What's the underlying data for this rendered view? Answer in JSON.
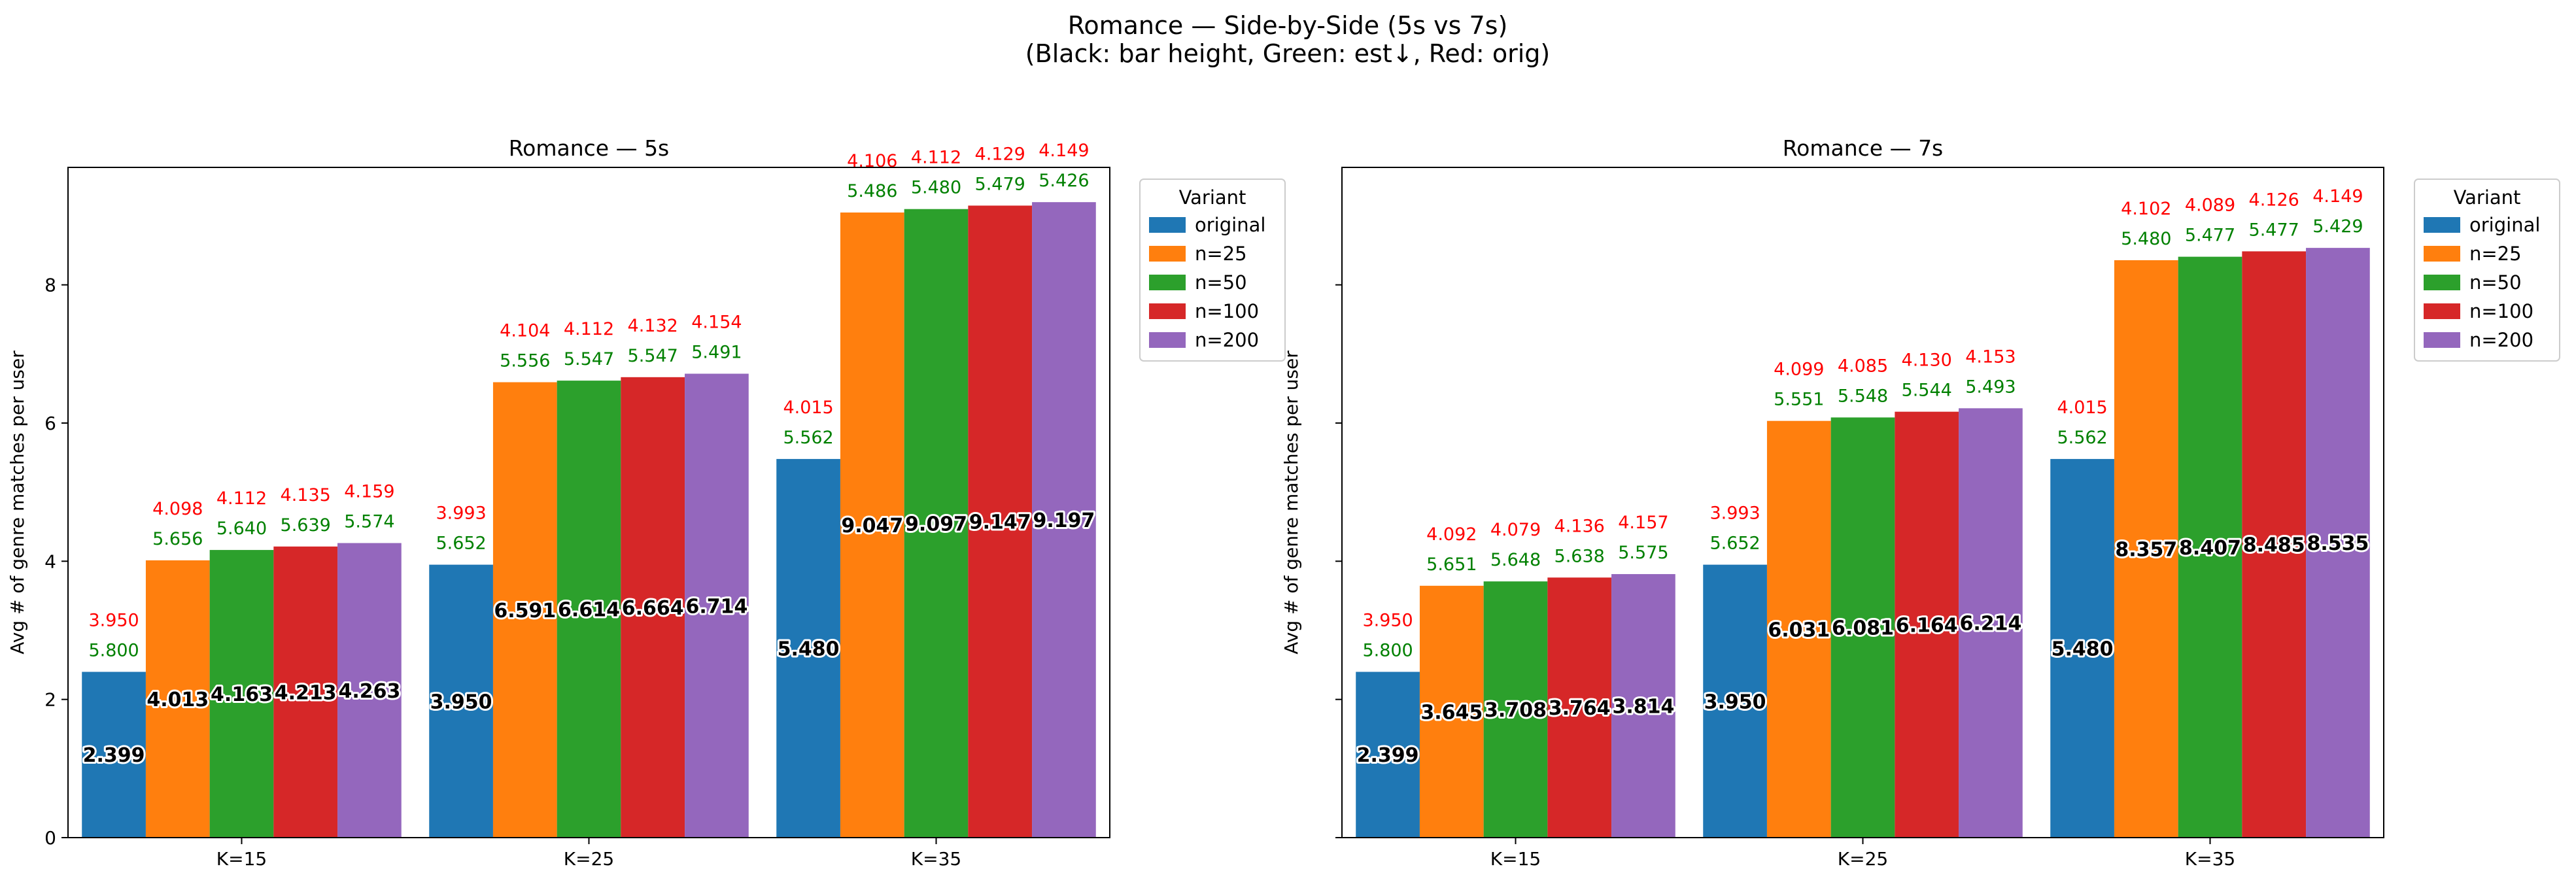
{
  "figure": {
    "title_line1": "Romance — Side-by-Side (5s vs 7s)",
    "title_line2": "(Black: bar height, Green: est↓, Red: orig)"
  },
  "chart_data": [
    {
      "type": "bar",
      "title": "Romance — 5s",
      "xlabel": "",
      "ylabel": "Avg # of genre matches per user",
      "ylim": [
        0,
        9.7
      ],
      "yticks": [
        0,
        2,
        4,
        6,
        8
      ],
      "categories": [
        "K=15",
        "K=25",
        "K=35"
      ],
      "legend": {
        "title": "Variant",
        "placement": "upper-right-outside"
      },
      "series": [
        {
          "name": "original",
          "color": "#1f77b4",
          "values": [
            2.399,
            3.95,
            5.48
          ],
          "green": [
            "5.800",
            "5.652",
            "5.562"
          ],
          "red": [
            "3.950",
            "3.993",
            "4.015"
          ]
        },
        {
          "name": "n=25",
          "color": "#ff7f0e",
          "values": [
            4.013,
            6.591,
            9.047
          ],
          "green": [
            "5.656",
            "5.556",
            "5.486"
          ],
          "red": [
            "4.098",
            "4.104",
            "4.106"
          ]
        },
        {
          "name": "n=50",
          "color": "#2ca02c",
          "values": [
            4.163,
            6.614,
            9.097
          ],
          "green": [
            "5.640",
            "5.547",
            "5.480"
          ],
          "red": [
            "4.112",
            "4.112",
            "4.112"
          ]
        },
        {
          "name": "n=100",
          "color": "#d62728",
          "values": [
            4.213,
            6.664,
            9.147
          ],
          "green": [
            "5.639",
            "5.547",
            "5.479"
          ],
          "red": [
            "4.135",
            "4.132",
            "4.129"
          ]
        },
        {
          "name": "n=200",
          "color": "#9467bd",
          "values": [
            4.263,
            6.714,
            9.197
          ],
          "green": [
            "5.574",
            "5.491",
            "5.426"
          ],
          "red": [
            "4.159",
            "4.154",
            "4.149"
          ]
        }
      ]
    },
    {
      "type": "bar",
      "title": "Romance — 7s",
      "xlabel": "",
      "ylabel": "Avg # of genre matches per user",
      "ylim": [
        0,
        9.7
      ],
      "yticks": [
        0,
        2,
        4,
        6,
        8
      ],
      "show_tick_labels_y": false,
      "categories": [
        "K=15",
        "K=25",
        "K=35"
      ],
      "legend": {
        "title": "Variant",
        "placement": "upper-right-outside"
      },
      "series": [
        {
          "name": "original",
          "color": "#1f77b4",
          "values": [
            2.399,
            3.95,
            5.48
          ],
          "green": [
            "5.800",
            "5.652",
            "5.562"
          ],
          "red": [
            "3.950",
            "3.993",
            "4.015"
          ]
        },
        {
          "name": "n=25",
          "color": "#ff7f0e",
          "values": [
            3.645,
            6.031,
            8.357
          ],
          "green": [
            "5.651",
            "5.551",
            "5.480"
          ],
          "red": [
            "4.092",
            "4.099",
            "4.102"
          ]
        },
        {
          "name": "n=50",
          "color": "#2ca02c",
          "values": [
            3.708,
            6.081,
            8.407
          ],
          "green": [
            "5.648",
            "5.548",
            "5.477"
          ],
          "red": [
            "4.079",
            "4.085",
            "4.089"
          ]
        },
        {
          "name": "n=100",
          "color": "#d62728",
          "values": [
            3.764,
            6.164,
            8.485
          ],
          "green": [
            "5.638",
            "5.544",
            "5.477"
          ],
          "red": [
            "4.136",
            "4.130",
            "4.126"
          ]
        },
        {
          "name": "n=200",
          "color": "#9467bd",
          "values": [
            3.814,
            6.214,
            8.535
          ],
          "green": [
            "5.575",
            "5.493",
            "5.429"
          ],
          "red": [
            "4.157",
            "4.153",
            "4.149"
          ]
        }
      ]
    }
  ]
}
